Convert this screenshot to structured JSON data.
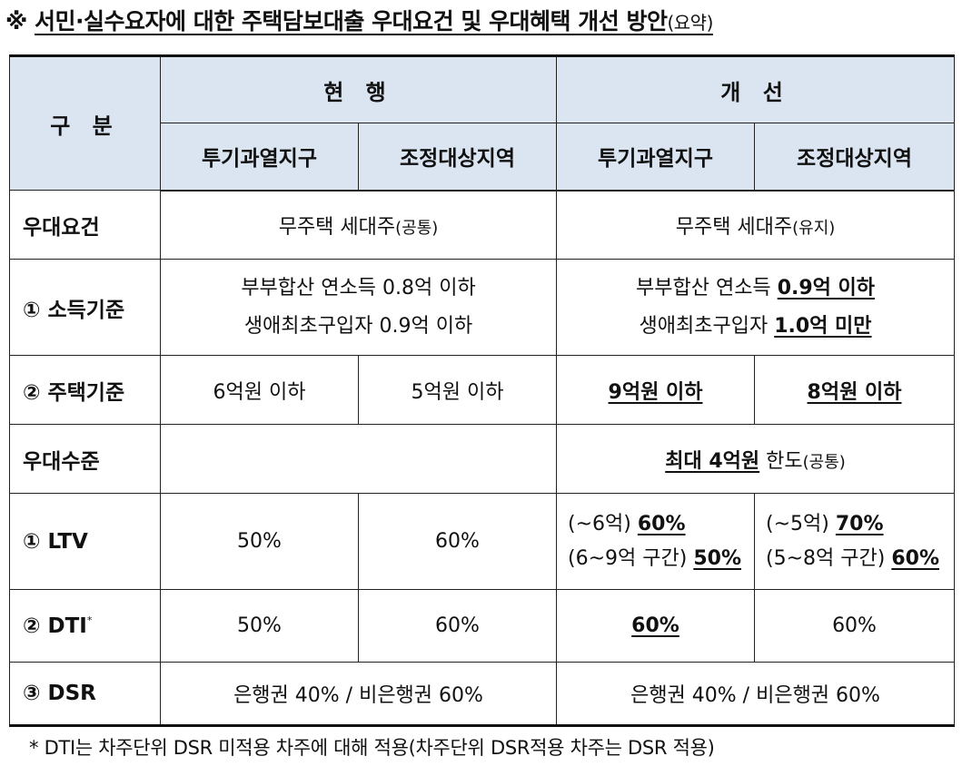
{
  "title": {
    "prefix": "※",
    "main": "서민·실수요자에 대한 주택담보대출 우대요건 및 우대혜택 개선 방안",
    "sub": "(요약)"
  },
  "header": {
    "category": "구 분",
    "current": "현 행",
    "improved": "개 선",
    "zone_a": "투기과열지구",
    "zone_b": "조정대상지역"
  },
  "rows": {
    "requirements": {
      "label": "우대요건",
      "current_main": "무주택 세대주",
      "current_note": "(공통)",
      "improved_main": "무주택 세대주",
      "improved_note": "(유지)"
    },
    "income": {
      "label": "① 소득기준",
      "current_line1": "부부합산 연소득 0.8억 이하",
      "current_line2": "생애최초구입자 0.9억 이하",
      "improved_line1_prefix": "부부합산 연소득",
      "improved_line1_value": "0.9억 이하",
      "improved_line2_prefix": "생애최초구입자",
      "improved_line2_value": "1.0억 미만"
    },
    "housing": {
      "label": "② 주택기준",
      "current_a": "6억원 이하",
      "current_b": "5억원 이하",
      "improved_a": "9억원 이하",
      "improved_b": "8억원 이하"
    },
    "level": {
      "label": "우대수준",
      "improved_main": "최대 4억원",
      "improved_suffix": "한도",
      "improved_note": "(공통)"
    },
    "ltv": {
      "label": "① LTV",
      "current_a": "50%",
      "current_b": "60%",
      "improved_a_line1_prefix": "(~6억)",
      "improved_a_line1_value": "60%",
      "improved_a_line2_prefix": "(6~9억 구간)",
      "improved_a_line2_value": "50%",
      "improved_b_line1_prefix": "(~5억)",
      "improved_b_line1_value": "70%",
      "improved_b_line2_prefix": "(5~8억 구간)",
      "improved_b_line2_value": "60%"
    },
    "dti": {
      "label": "② DTI",
      "label_mark": "*",
      "current_a": "50%",
      "current_b": "60%",
      "improved_a": "60%",
      "improved_b": "60%"
    },
    "dsr": {
      "label": "③ DSR",
      "current": "은행권 40% / 비은행권 60%",
      "improved": "은행권 40% / 비은행권 60%"
    }
  },
  "footnote": "* DTI는 차주단위 DSR 미적용 차주에 대해 적용(차주단위 DSR적용 차주는 DSR 적용)"
}
